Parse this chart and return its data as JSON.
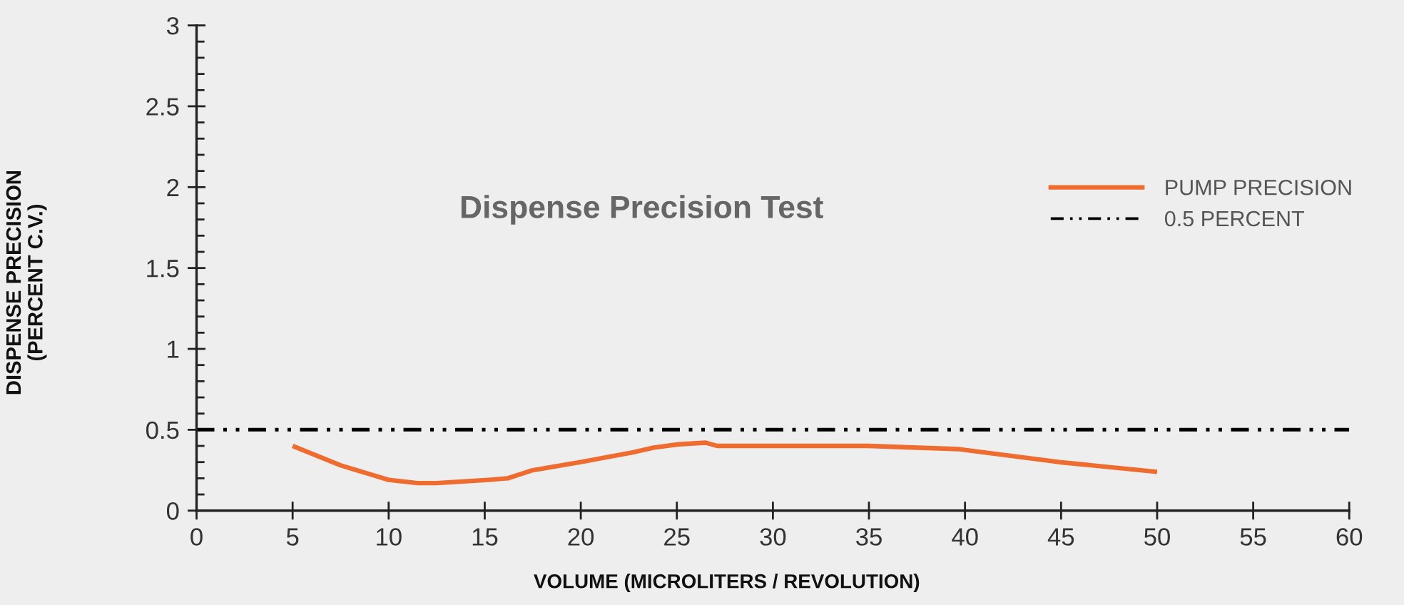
{
  "chart_data": {
    "type": "line",
    "title": "Dispense Precision Test",
    "xlabel": "VOLUME (MICROLITERS / REVOLUTION)",
    "ylabel": "DISPENSE PRECISION\n(PERCENT C.V.)",
    "x": [
      5,
      7.5,
      10,
      11.5,
      12.5,
      15.2,
      16.2,
      17.5,
      20,
      22.7,
      23.8,
      25.1,
      26.5,
      27.1,
      31.3,
      35,
      37.3,
      39.7,
      44.9,
      50
    ],
    "series": [
      {
        "name": "PUMP PRECISION",
        "color": "#ef6c30",
        "values": [
          0.4,
          0.28,
          0.19,
          0.17,
          0.17,
          0.19,
          0.2,
          0.25,
          0.3,
          0.36,
          0.39,
          0.41,
          0.42,
          0.4,
          0.4,
          0.4,
          0.39,
          0.38,
          0.3,
          0.24
        ]
      }
    ],
    "xlim": [
      0,
      60
    ],
    "xticks": [
      0,
      5,
      10,
      15,
      20,
      25,
      30,
      35,
      40,
      45,
      50,
      55,
      60
    ],
    "ylim": [
      0,
      3
    ],
    "yticks": [
      0,
      0.5,
      1,
      1.5,
      2,
      2.5,
      3
    ],
    "ref_lines": [
      {
        "axis": "y",
        "value": 0.5,
        "label": "0.5 PERCENT",
        "color": "#000000",
        "line_style": "dashed"
      }
    ],
    "legend": "right",
    "grid": false,
    "marker": "none",
    "line_style": "solid"
  }
}
